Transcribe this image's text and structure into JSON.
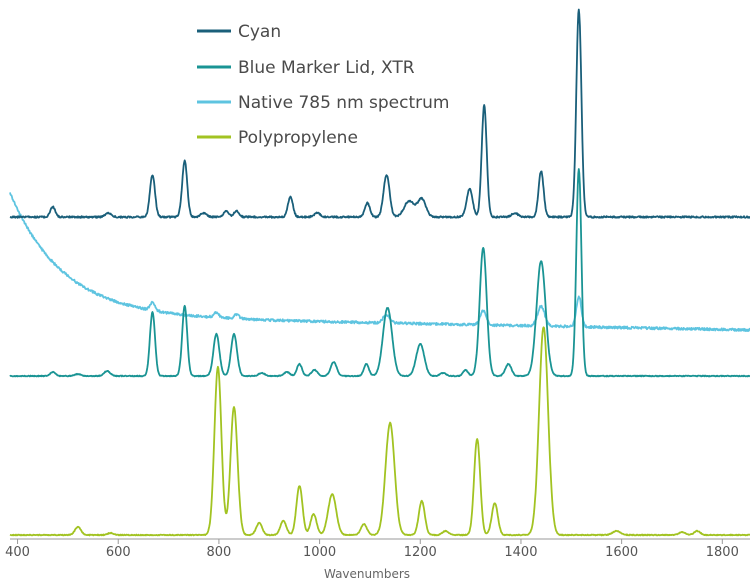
{
  "chart_data": {
    "type": "line",
    "xlabel": "Wavenumbers",
    "ylabel": "",
    "xlim": [
      385,
      1855
    ],
    "x_ticks": [
      "400",
      "600",
      "800",
      "1000",
      "1200",
      "1400",
      "1600",
      "1800"
    ],
    "x_tick_values": [
      400,
      600,
      800,
      1000,
      1200,
      1400,
      1600,
      1800
    ],
    "grid": false,
    "legend": "top-center",
    "series": [
      {
        "name": "Cyan",
        "color": "#1a5f7a",
        "baseline": 217,
        "peaks": [
          [
            470,
            10,
            5
          ],
          [
            580,
            4,
            6
          ],
          [
            668,
            42,
            5
          ],
          [
            732,
            56,
            5
          ],
          [
            770,
            4,
            6
          ],
          [
            815,
            6,
            5
          ],
          [
            835,
            6,
            5
          ],
          [
            942,
            20,
            5
          ],
          [
            995,
            4,
            6
          ],
          [
            1095,
            14,
            5
          ],
          [
            1133,
            42,
            6
          ],
          [
            1178,
            16,
            10
          ],
          [
            1203,
            18,
            8
          ],
          [
            1298,
            28,
            6
          ],
          [
            1327,
            112,
            5
          ],
          [
            1388,
            4,
            6
          ],
          [
            1440,
            46,
            5
          ],
          [
            1515,
            207,
            5
          ]
        ],
        "noise": 0.8
      },
      {
        "name": "Blue Marker Lid, XTR",
        "color": "#1a9494",
        "baseline": 376,
        "peaks": [
          [
            470,
            4,
            5
          ],
          [
            520,
            2,
            6
          ],
          [
            578,
            5,
            6
          ],
          [
            668,
            64,
            5
          ],
          [
            732,
            70,
            5
          ],
          [
            795,
            42,
            6
          ],
          [
            830,
            42,
            6
          ],
          [
            885,
            3,
            6
          ],
          [
            935,
            4,
            6
          ],
          [
            960,
            12,
            5
          ],
          [
            990,
            6,
            6
          ],
          [
            1028,
            14,
            6
          ],
          [
            1093,
            12,
            5
          ],
          [
            1135,
            68,
            9
          ],
          [
            1200,
            32,
            8
          ],
          [
            1245,
            3,
            6
          ],
          [
            1290,
            6,
            5
          ],
          [
            1325,
            128,
            7
          ],
          [
            1375,
            12,
            6
          ],
          [
            1440,
            115,
            9
          ],
          [
            1515,
            207,
            5
          ]
        ],
        "noise": 0.4
      },
      {
        "name": "Native 785 nm spectrum",
        "color": "#5ec4e0",
        "decay": {
          "start": 385,
          "y0": 193,
          "ylong": 316,
          "tau": 105,
          "drift_to": 330
        },
        "peaks": [
          [
            668,
            8,
            5
          ],
          [
            795,
            5,
            5
          ],
          [
            835,
            4,
            5
          ],
          [
            1133,
            8,
            7
          ],
          [
            1325,
            14,
            6
          ],
          [
            1440,
            20,
            7
          ],
          [
            1515,
            30,
            5
          ]
        ],
        "noise": 1.2
      },
      {
        "name": "Polypropylene",
        "color": "#a2c322",
        "baseline": 535,
        "peaks": [
          [
            520,
            8,
            6
          ],
          [
            585,
            2,
            6
          ],
          [
            798,
            168,
            7
          ],
          [
            830,
            128,
            7
          ],
          [
            880,
            12,
            6
          ],
          [
            928,
            14,
            6
          ],
          [
            960,
            49,
            6
          ],
          [
            988,
            21,
            6
          ],
          [
            1025,
            41,
            8
          ],
          [
            1088,
            11,
            6
          ],
          [
            1140,
            112,
            9
          ],
          [
            1203,
            34,
            6
          ],
          [
            1250,
            4,
            6
          ],
          [
            1313,
            96,
            6
          ],
          [
            1348,
            32,
            6
          ],
          [
            1445,
            208,
            9
          ],
          [
            1590,
            4,
            8
          ],
          [
            1720,
            3,
            6
          ],
          [
            1750,
            4,
            6
          ]
        ],
        "noise": 0.4
      }
    ]
  }
}
